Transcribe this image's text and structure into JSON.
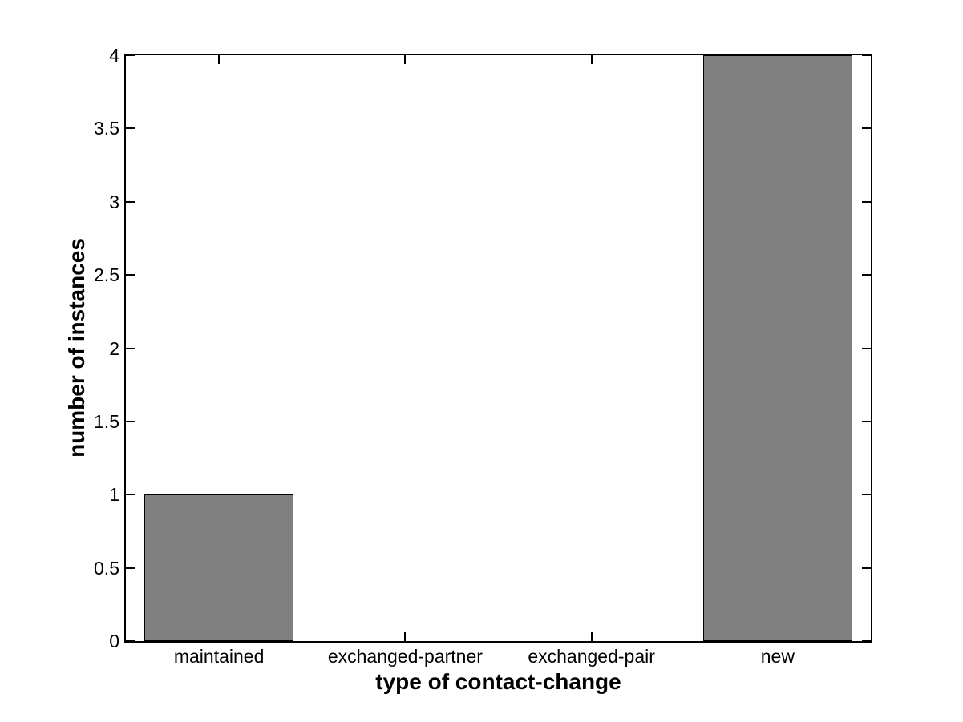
{
  "figure": {
    "background": "#ffffff"
  },
  "chart_data": {
    "type": "bar",
    "categories": [
      "maintained",
      "exchanged-partner",
      "exchanged-pair",
      "new"
    ],
    "values": [
      1,
      0,
      0,
      4
    ],
    "xlabel": "type of contact-change",
    "ylabel": "number of instances",
    "ylim": [
      0,
      4
    ],
    "yticks": [
      0,
      0.5,
      1,
      1.5,
      2,
      2.5,
      3,
      3.5,
      4
    ],
    "ytick_labels": [
      "0",
      "0.5",
      "1",
      "1.5",
      "2",
      "2.5",
      "3",
      "3.5",
      "4"
    ],
    "bar_width_fraction": 0.8,
    "grid": false,
    "axes_box": true,
    "tick_direction": "in",
    "colors": {
      "bar_fill": "#808080",
      "bar_edge": "#000000",
      "axis": "#000000",
      "text": "#000000",
      "background": "#ffffff"
    }
  }
}
